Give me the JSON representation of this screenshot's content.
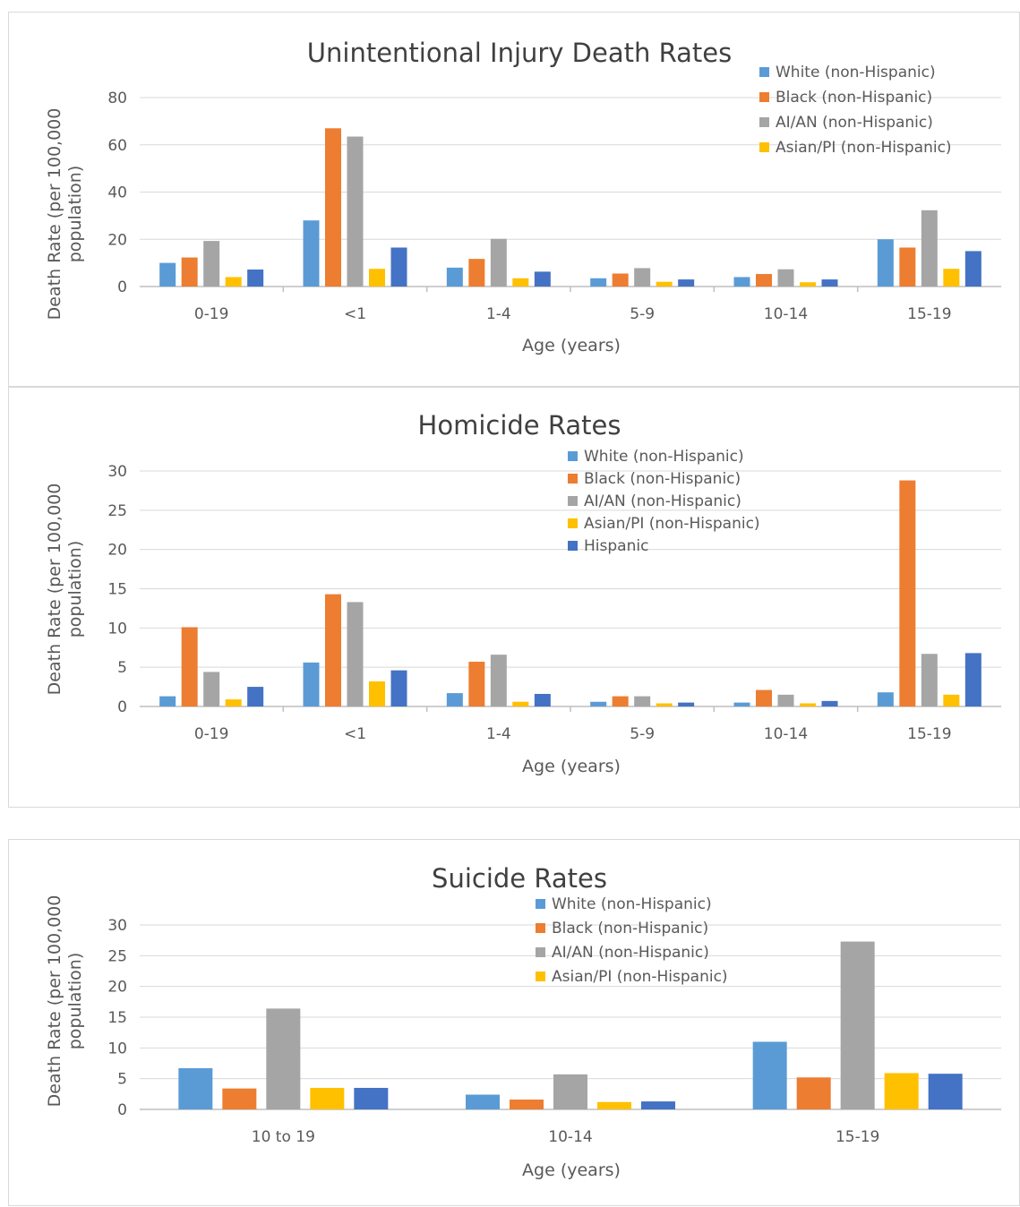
{
  "colors": {
    "White (non-Hispanic)": "#5b9bd5",
    "Black (non-Hispanic)": "#ed7d31",
    "AI/AN (non-Hispanic)": "#a5a5a5",
    "Asian/PI (non-Hispanic)": "#ffc000",
    "Hispanic": "#4472c4"
  },
  "chart_data": [
    {
      "type": "bar",
      "title": "Unintentional Injury Death Rates",
      "xlabel": "Age (years)",
      "ylabel": "Death Rate (per 100,000 population)",
      "ylim": [
        0,
        80
      ],
      "yticks": [
        0,
        20,
        40,
        60,
        80
      ],
      "grid": true,
      "legend": "top-right",
      "categories": [
        "0-19",
        "<1",
        "1-4",
        "5-9",
        "10-14",
        "15-19"
      ],
      "series": [
        {
          "name": "White (non-Hispanic)",
          "values": [
            10,
            28,
            8,
            3.5,
            4,
            20
          ]
        },
        {
          "name": "Black (non-Hispanic)",
          "values": [
            12.3,
            67,
            11.7,
            5.5,
            5.3,
            16.5
          ]
        },
        {
          "name": "AI/AN (non-Hispanic)",
          "values": [
            19.3,
            63.5,
            20.2,
            7.8,
            7.3,
            32.3
          ]
        },
        {
          "name": "Asian/PI (non-Hispanic)",
          "values": [
            4,
            7.5,
            3.5,
            2,
            1.8,
            7.5
          ]
        },
        {
          "values": [
            7.2,
            16.5,
            6.3,
            3,
            3,
            15
          ]
        }
      ]
    },
    {
      "type": "bar",
      "title": "Homicide Rates",
      "xlabel": "Age (years)",
      "ylabel": "Death Rate (per 100,000 population)",
      "ylim": [
        0,
        30
      ],
      "yticks": [
        0,
        5,
        10,
        15,
        20,
        25,
        30
      ],
      "grid": true,
      "legend": "top-center",
      "categories": [
        "0-19",
        "<1",
        "1-4",
        "5-9",
        "10-14",
        "15-19"
      ],
      "series": [
        {
          "name": "White (non-Hispanic)",
          "values": [
            1.3,
            5.6,
            1.7,
            0.6,
            0.5,
            1.8
          ]
        },
        {
          "name": "Black (non-Hispanic)",
          "values": [
            10.1,
            14.3,
            5.7,
            1.3,
            2.1,
            28.8
          ]
        },
        {
          "name": "AI/AN (non-Hispanic)",
          "values": [
            4.4,
            13.3,
            6.6,
            1.3,
            1.5,
            6.7
          ]
        },
        {
          "name": "Asian/PI (non-Hispanic)",
          "values": [
            0.9,
            3.2,
            0.6,
            0.4,
            0.4,
            1.5
          ]
        },
        {
          "name": "Hispanic",
          "values": [
            2.5,
            4.6,
            1.6,
            0.5,
            0.7,
            6.8
          ]
        }
      ]
    },
    {
      "type": "bar",
      "title": "Suicide Rates",
      "xlabel": "Age (years)",
      "ylabel": "Death Rate (per 100,000 population)",
      "ylim": [
        0,
        30
      ],
      "yticks": [
        0,
        5,
        10,
        15,
        20,
        25,
        30
      ],
      "grid": true,
      "legend": "top-center",
      "categories": [
        "10 to 19",
        "10-14",
        "15-19"
      ],
      "series": [
        {
          "name": "White (non-Hispanic)",
          "values": [
            6.7,
            2.4,
            11
          ]
        },
        {
          "name": "Black (non-Hispanic)",
          "values": [
            3.4,
            1.6,
            5.2
          ]
        },
        {
          "name": "AI/AN (non-Hispanic)",
          "values": [
            16.4,
            5.7,
            27.3
          ]
        },
        {
          "name": "Asian/PI (non-Hispanic)",
          "values": [
            3.5,
            1.2,
            5.9
          ]
        },
        {
          "values": [
            3.5,
            1.3,
            5.8
          ]
        }
      ]
    }
  ]
}
